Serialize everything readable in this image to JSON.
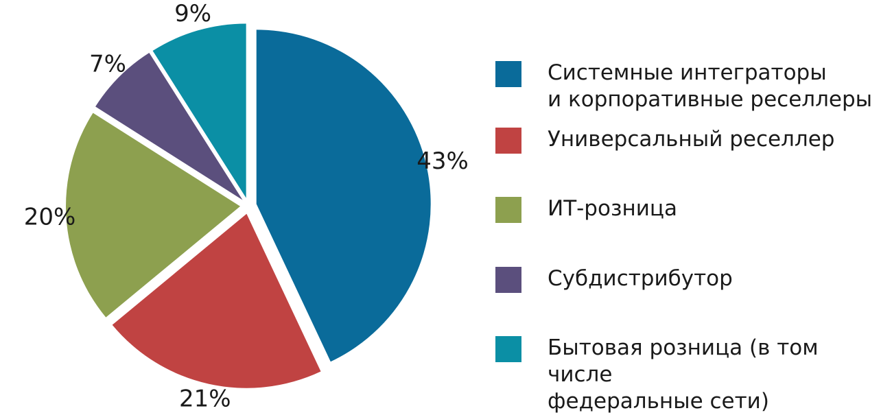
{
  "chart_data": {
    "type": "pie",
    "slices": [
      {
        "label": "Системные интеграторы\nи корпоративные реселлеры",
        "value": 43,
        "value_label": "43%",
        "color": "#0a6b9a"
      },
      {
        "label": "Универсальный реселлер",
        "value": 21,
        "value_label": "21%",
        "color": "#c04342"
      },
      {
        "label": "ИТ-розница",
        "value": 20,
        "value_label": "20%",
        "color": "#8da04f"
      },
      {
        "label": "Субдистрибутор",
        "value": 7,
        "value_label": "7%",
        "color": "#5b4f7d"
      },
      {
        "label": "Бытовая розница (в том числе\nфедеральные сети)",
        "value": 9,
        "value_label": "9%",
        "color": "#0b8fa5"
      }
    ],
    "start": "top",
    "direction": "clockwise",
    "exploded": true,
    "legend_position": "right"
  }
}
